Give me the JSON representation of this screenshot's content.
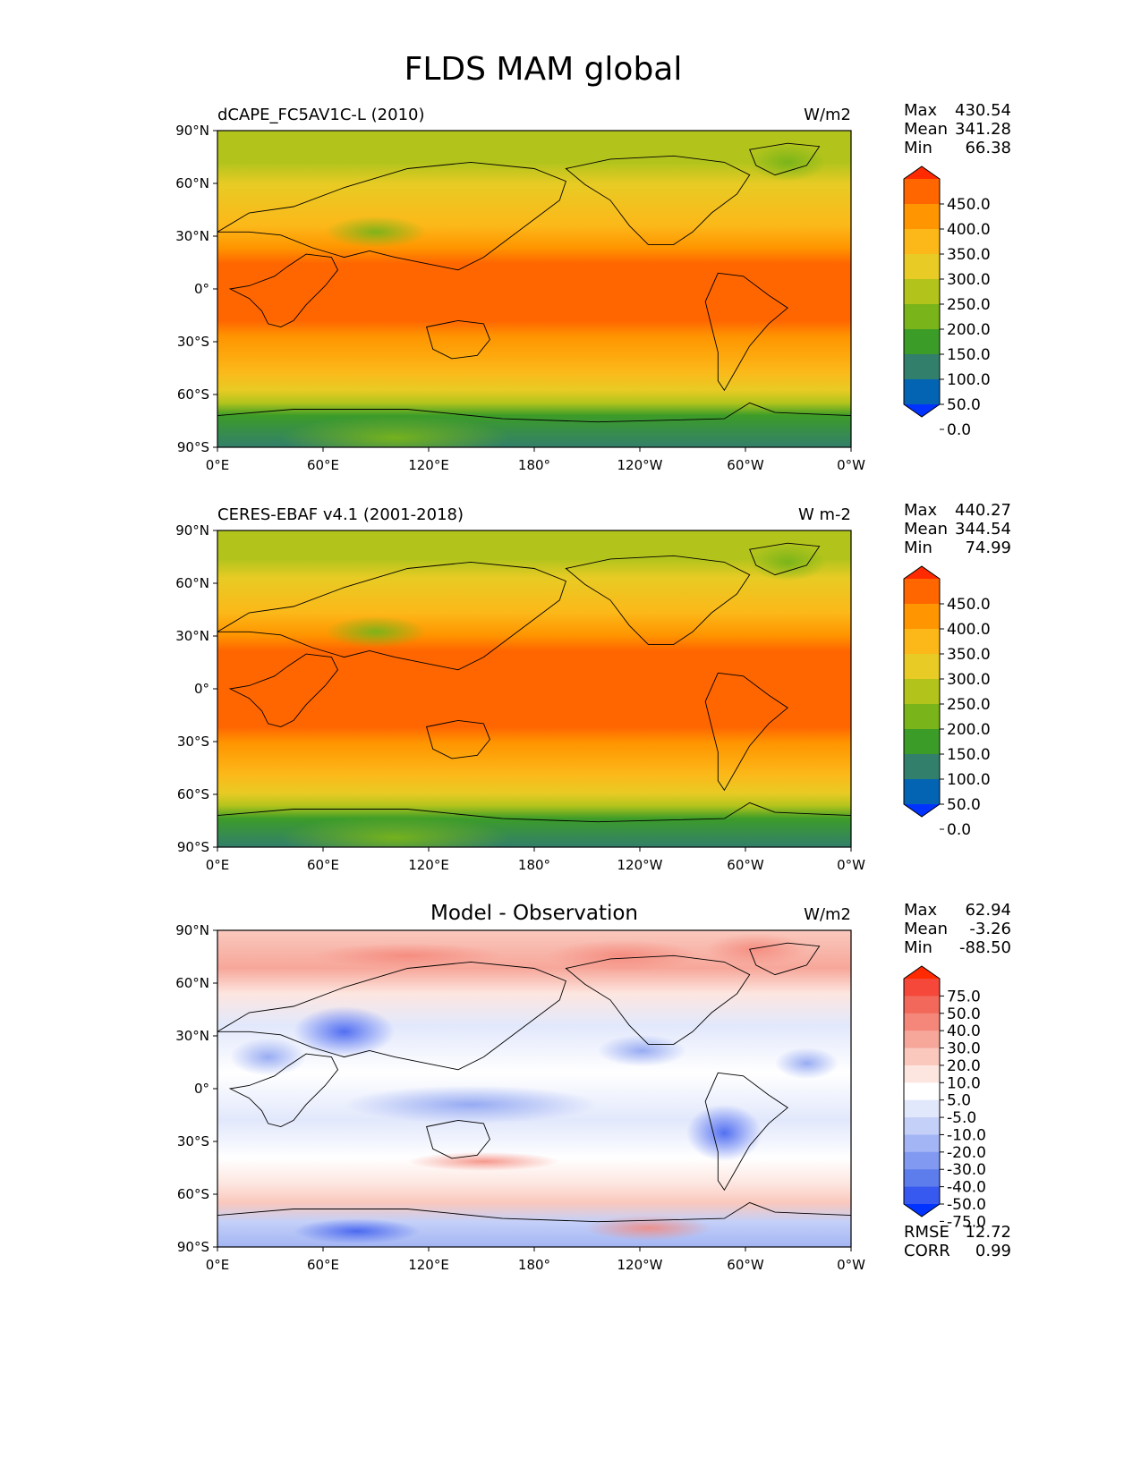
{
  "figure": {
    "title": "FLDS MAM global"
  },
  "axes": {
    "xticks": [
      "0°E",
      "60°E",
      "120°E",
      "180°",
      "120°W",
      "60°W",
      "0°W"
    ],
    "yticks": [
      "90°N",
      "60°N",
      "30°N",
      "0°",
      "30°S",
      "60°S",
      "90°S"
    ]
  },
  "panels": [
    {
      "id": "model",
      "title_left": "dCAPE_FC5AV1C-L (2010)",
      "title_center": "",
      "units": "W/m2",
      "stats": [
        {
          "label": "Max",
          "value": "430.54"
        },
        {
          "label": "Mean",
          "value": "341.28"
        },
        {
          "label": "Min",
          "value": "66.38"
        }
      ],
      "colorbar": {
        "labels": [
          "450.0",
          "400.0",
          "350.0",
          "300.0",
          "250.0",
          "200.0",
          "150.0",
          "100.0",
          "50.0",
          "0.0"
        ],
        "colors": [
          "#ff2a00",
          "#ff6600",
          "#ff9500",
          "#fcb819",
          "#e8cb24",
          "#b2c41c",
          "#78b41a",
          "#3c9c28",
          "#327f6b",
          "#0464b4",
          "#0033ff"
        ]
      }
    },
    {
      "id": "observation",
      "title_left": "CERES-EBAF v4.1 (2001-2018)",
      "title_center": "",
      "units": "W m-2",
      "stats": [
        {
          "label": "Max",
          "value": "440.27"
        },
        {
          "label": "Mean",
          "value": "344.54"
        },
        {
          "label": "Min",
          "value": "74.99"
        }
      ],
      "colorbar": {
        "labels": [
          "450.0",
          "400.0",
          "350.0",
          "300.0",
          "250.0",
          "200.0",
          "150.0",
          "100.0",
          "50.0",
          "0.0"
        ],
        "colors": [
          "#ff2a00",
          "#ff6600",
          "#ff9500",
          "#fcb819",
          "#e8cb24",
          "#b2c41c",
          "#78b41a",
          "#3c9c28",
          "#327f6b",
          "#0464b4",
          "#0033ff"
        ]
      }
    },
    {
      "id": "difference",
      "title_left": "",
      "title_center": "Model - Observation",
      "units": "W/m2",
      "stats": [
        {
          "label": "Max",
          "value": "62.94"
        },
        {
          "label": "Mean",
          "value": "-3.26"
        },
        {
          "label": "Min",
          "value": "-88.50"
        }
      ],
      "extra_stats": [
        {
          "label": "RMSE",
          "value": "12.72"
        },
        {
          "label": "CORR",
          "value": "0.99"
        }
      ],
      "colorbar": {
        "labels": [
          "75.0",
          "50.0",
          "40.0",
          "30.0",
          "20.0",
          "10.0",
          "5.0",
          "-5.0",
          "-10.0",
          "-20.0",
          "-30.0",
          "-40.0",
          "-50.0",
          "-75.0"
        ],
        "colors": [
          "#ff2a00",
          "#f5483a",
          "#f2685a",
          "#f4877a",
          "#f7a79a",
          "#fac8bd",
          "#fde6e0",
          "#ffffff",
          "#e2e8fc",
          "#c4d0f8",
          "#a3b5f4",
          "#8199f0",
          "#5d7ded",
          "#3859ef",
          "#0033ff"
        ]
      }
    }
  ]
}
